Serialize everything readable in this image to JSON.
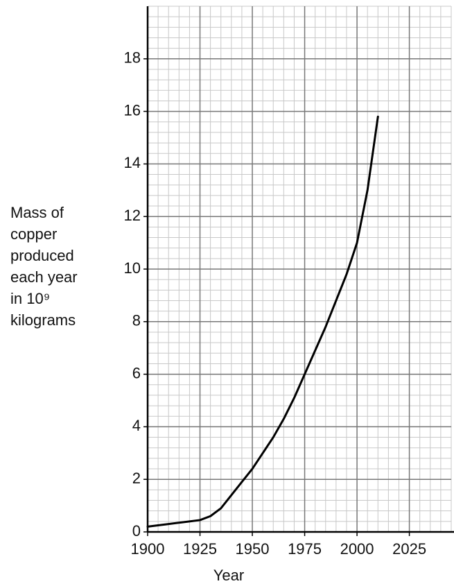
{
  "chart_data": {
    "type": "line",
    "ylabel": [
      "Mass of",
      "copper",
      "produced",
      "each year",
      "in 10⁹",
      "kilograms"
    ],
    "xlabel": "Year",
    "x": [
      1900,
      1910,
      1920,
      1925,
      1930,
      1935,
      1940,
      1945,
      1950,
      1955,
      1960,
      1965,
      1970,
      1975,
      1980,
      1985,
      1990,
      1995,
      2000,
      2005,
      2010
    ],
    "series": [
      {
        "name": "Mass of copper",
        "color": "#000000",
        "values": [
          0.2,
          0.3,
          0.4,
          0.45,
          0.6,
          0.9,
          1.4,
          1.9,
          2.4,
          3.0,
          3.6,
          4.3,
          5.1,
          6.0,
          6.9,
          7.8,
          8.8,
          9.8,
          11.0,
          13.0,
          15.8
        ]
      }
    ],
    "xlim": [
      1900,
      2045
    ],
    "ylim": [
      0,
      20
    ],
    "xticks": [
      1900,
      1925,
      1950,
      1975,
      2000,
      2025
    ],
    "yticks": [
      0,
      2,
      4,
      6,
      8,
      10,
      12,
      14,
      16,
      18
    ],
    "grid": true
  }
}
